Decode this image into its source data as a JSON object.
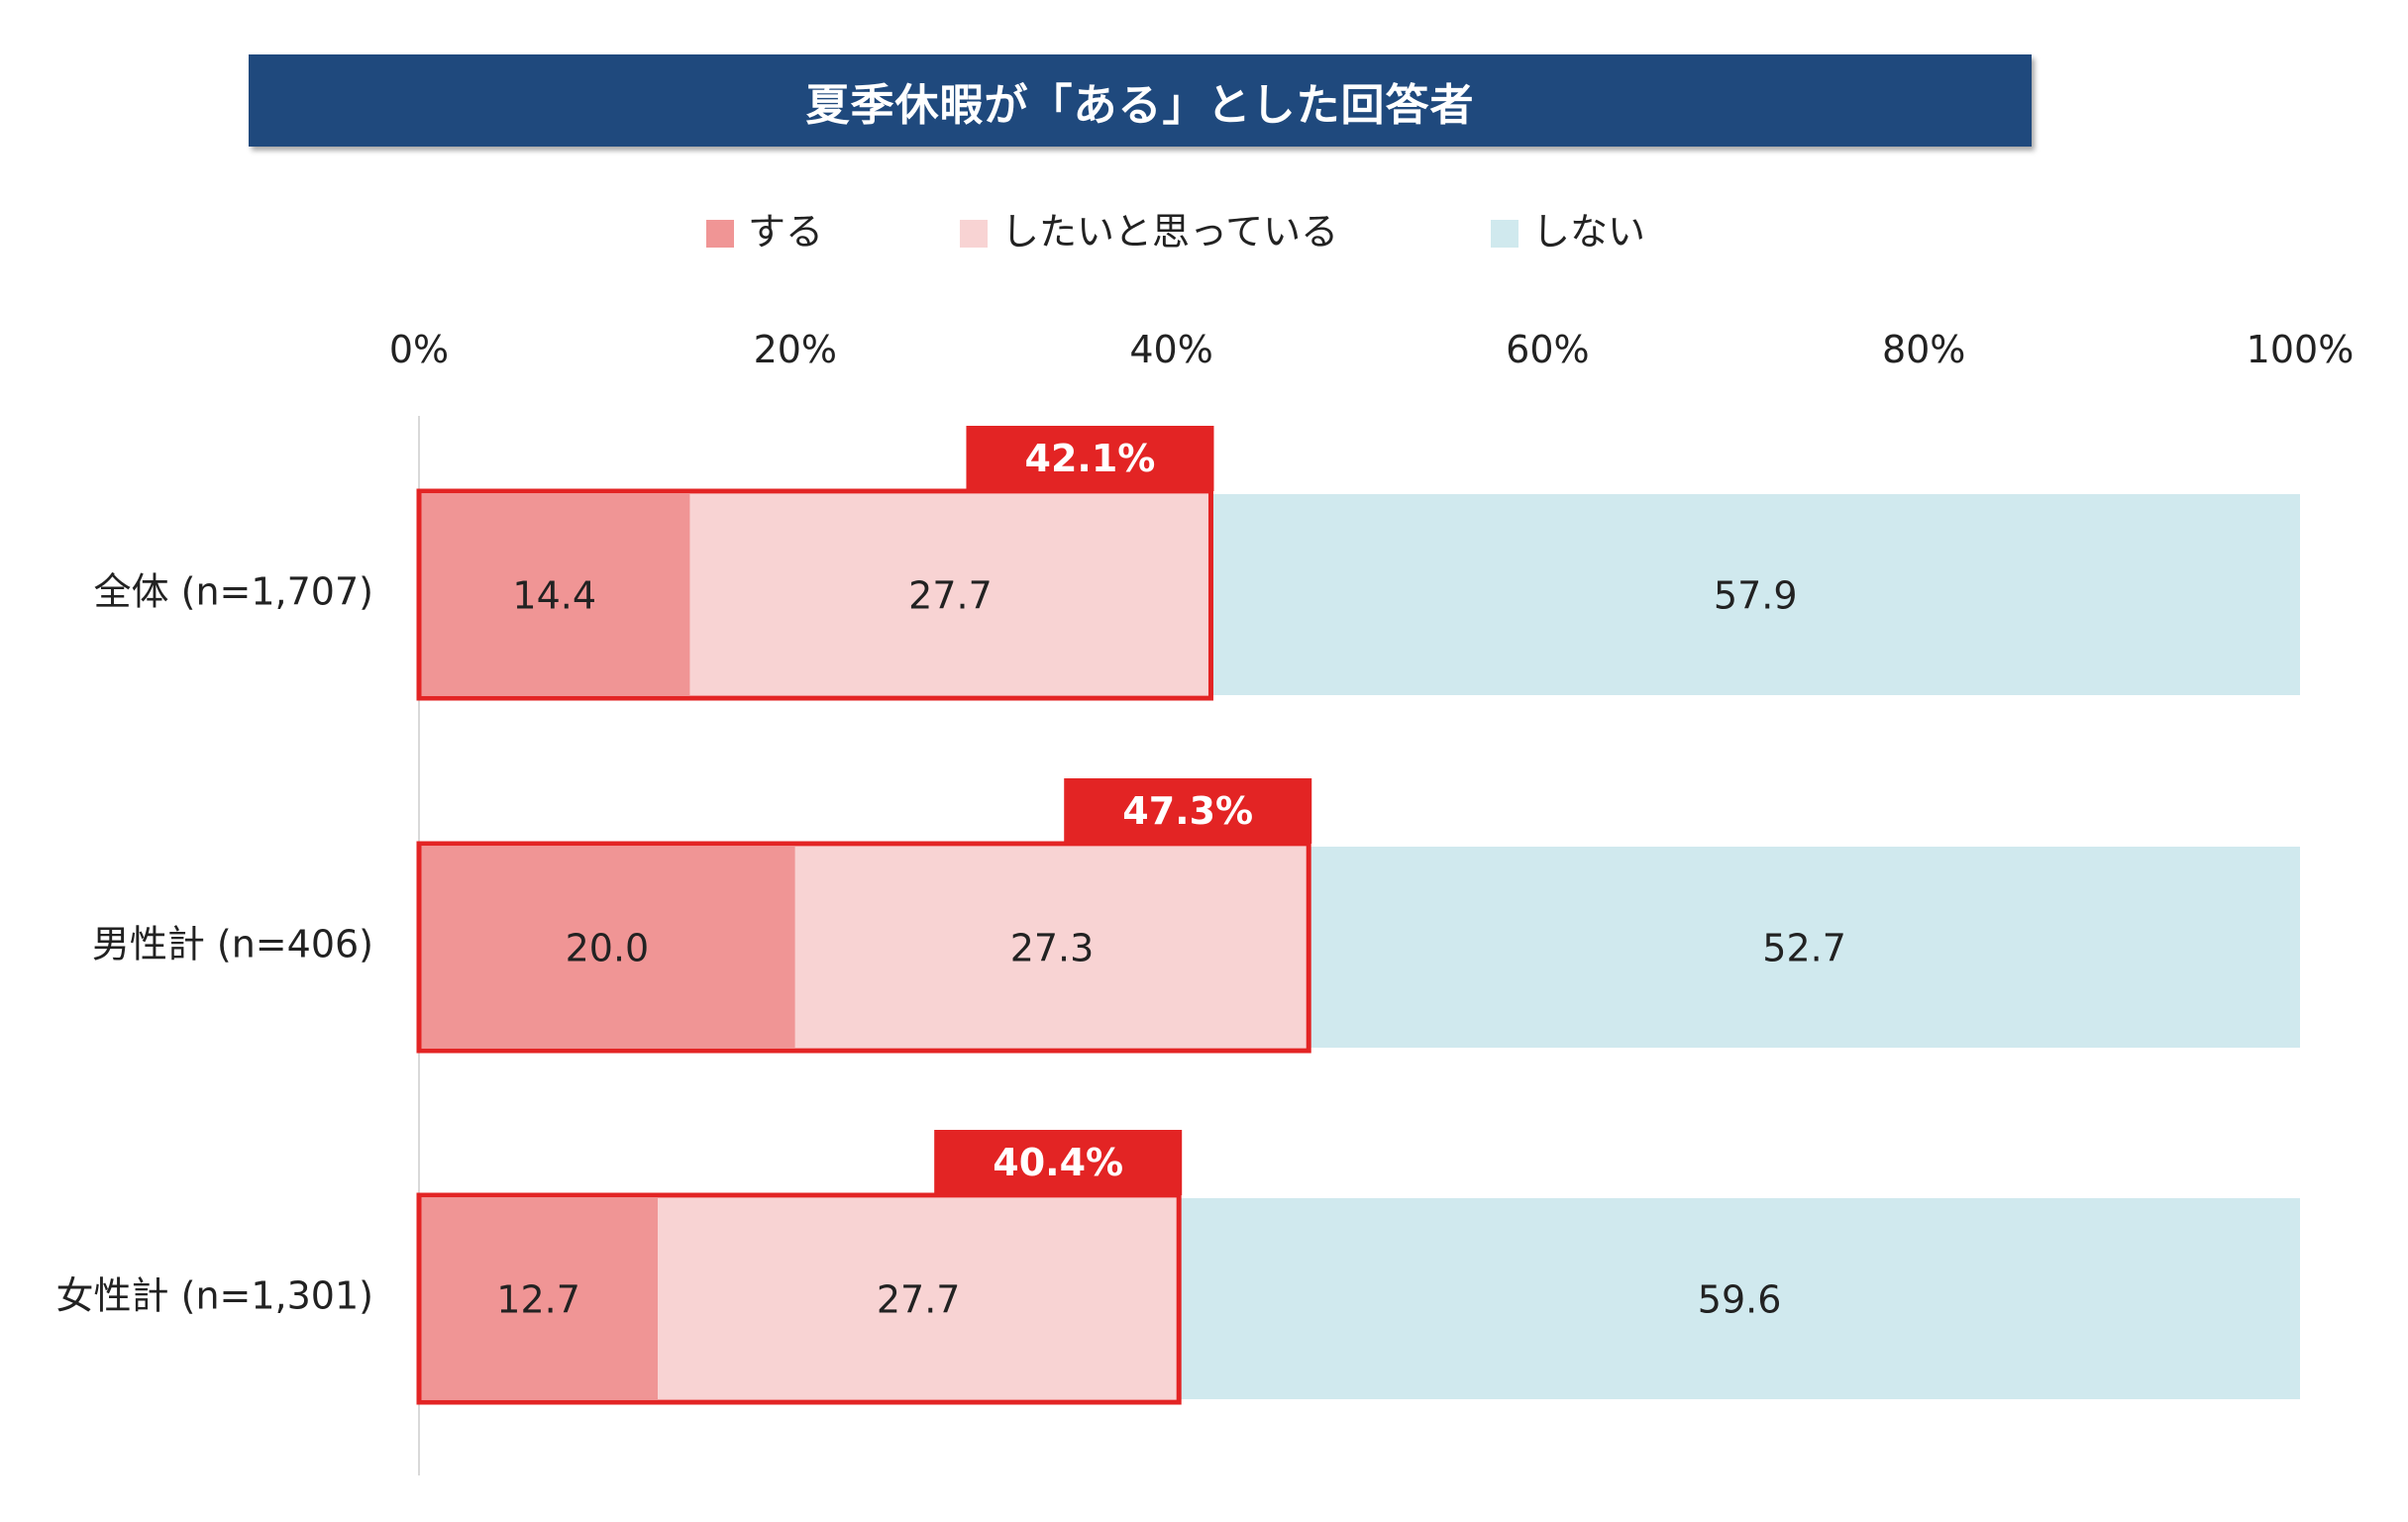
{
  "chart_data": {
    "type": "bar",
    "orientation": "horizontal",
    "stacked": true,
    "title": "夏季休暇が「ある」とした回答者",
    "categories": [
      "全体 (n=1,707)",
      "男性計 (n=406)",
      "女性計 (n=1,301)"
    ],
    "series": [
      {
        "name": "する",
        "color": "#f09595",
        "values": [
          14.4,
          20.0,
          12.7
        ],
        "labels": [
          "14.4",
          "20.0",
          "12.7"
        ]
      },
      {
        "name": "したいと思っている",
        "color": "#f8d3d3",
        "values": [
          27.7,
          27.3,
          27.7
        ],
        "labels": [
          "27.7",
          "27.3",
          "27.7"
        ]
      },
      {
        "name": "しない",
        "color": "#d0e9ee",
        "values": [
          57.9,
          52.7,
          59.6
        ],
        "labels": [
          "57.9",
          "52.7",
          "59.6"
        ]
      }
    ],
    "callouts": [
      "42.1%",
      "47.3%",
      "40.4%"
    ],
    "x_ticks": [
      "0%",
      "20%",
      "40%",
      "60%",
      "80%",
      "100%"
    ],
    "xlim": [
      0,
      100
    ],
    "legend_position": "top",
    "highlight_color": "#e32424"
  }
}
